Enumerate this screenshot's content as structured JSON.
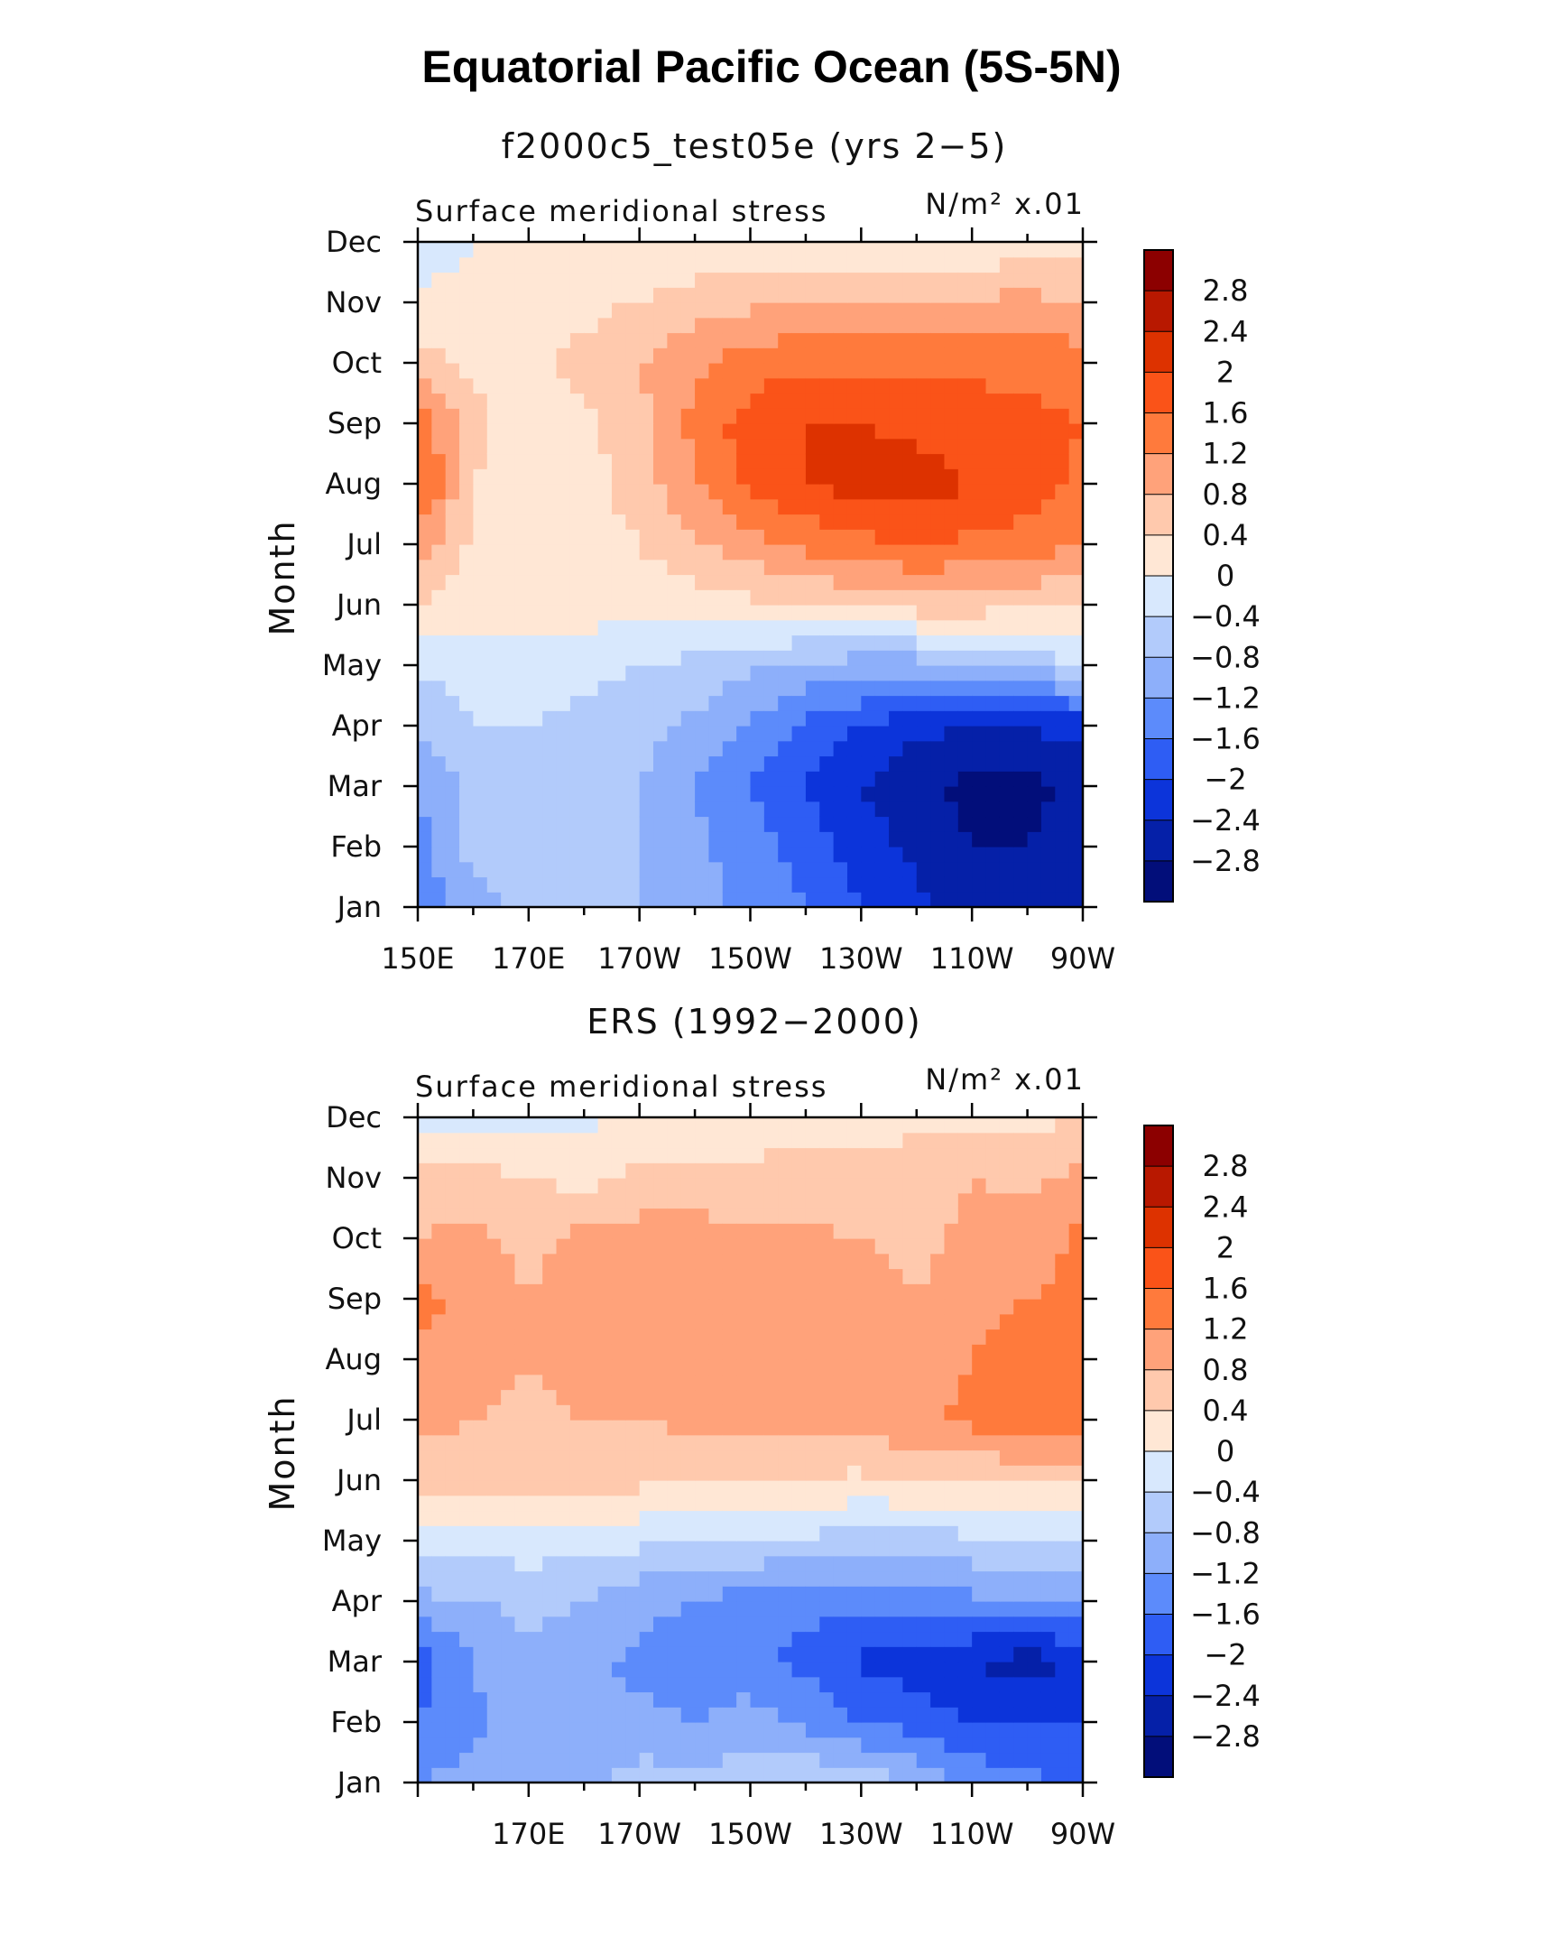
{
  "main_title": "Equatorial Pacific Ocean (5S-5N)",
  "colorbar": {
    "labels": [
      "2.8",
      "2.4",
      "2",
      "1.6",
      "1.2",
      "0.8",
      "0.4",
      "0",
      "−0.4",
      "−0.8",
      "−1.2",
      "−1.6",
      "−2",
      "−2.4",
      "−2.8"
    ],
    "colors": [
      "#8c0000",
      "#b81800",
      "#dd3200",
      "#fa5318",
      "#ff7a3c",
      "#ffa27a",
      "#ffc9ad",
      "#ffe7d5",
      "#d8e8fd",
      "#b2cbfb",
      "#8daffa",
      "#5c8bfb",
      "#2e5df4",
      "#0c34da",
      "#0520a8",
      "#020e7a"
    ]
  },
  "chart_data": [
    {
      "type": "heatmap",
      "title": "f2000c5_test05e (yrs 2−5)",
      "left_label": "Surface meridional stress",
      "right_label": "N/m² x.01",
      "ylabel": "Month",
      "x_ticks": [
        "150E",
        "170E",
        "170W",
        "150W",
        "130W",
        "110W",
        "90W"
      ],
      "y_ticks": [
        "Jan",
        "Feb",
        "Mar",
        "Apr",
        "May",
        "Jun",
        "Jul",
        "Aug",
        "Sep",
        "Oct",
        "Nov",
        "Dec"
      ],
      "x_values_deg_east": [
        150,
        160,
        170,
        180,
        190,
        200,
        210,
        220,
        230,
        240,
        250,
        260,
        270
      ],
      "values_by_month": [
        [
          -1.5,
          -1.0,
          -0.7,
          -0.7,
          -0.8,
          -1.1,
          -1.3,
          -1.6,
          -2.0,
          -2.3,
          -2.5,
          -2.6,
          -2.4
        ],
        [
          -1.4,
          -0.6,
          -0.4,
          -0.6,
          -0.8,
          -1.1,
          -1.4,
          -1.8,
          -2.2,
          -2.5,
          -2.8,
          -2.8,
          -2.5
        ],
        [
          -1.2,
          -0.7,
          -0.6,
          -0.6,
          -0.8,
          -1.2,
          -1.6,
          -2.0,
          -2.4,
          -2.7,
          -2.9,
          -2.9,
          -2.7
        ],
        [
          -0.8,
          -0.4,
          -0.4,
          -0.5,
          -0.6,
          -0.9,
          -1.3,
          -1.7,
          -2.0,
          -2.3,
          -2.4,
          -2.4,
          -2.2
        ],
        [
          -0.3,
          -0.2,
          -0.2,
          -0.3,
          -0.4,
          -0.5,
          -0.7,
          -0.9,
          -1.0,
          -1.0,
          -0.9,
          -0.7,
          -0.4
        ],
        [
          0.4,
          0.2,
          0.2,
          0.2,
          0.2,
          0.2,
          0.3,
          0.4,
          0.5,
          0.6,
          0.6,
          0.5,
          0.4
        ],
        [
          1.0,
          0.3,
          0.2,
          0.2,
          0.4,
          0.7,
          1.0,
          1.3,
          1.5,
          1.6,
          1.5,
          1.4,
          1.2
        ],
        [
          1.8,
          0.4,
          0.2,
          0.2,
          0.6,
          1.2,
          1.7,
          2.0,
          2.2,
          2.2,
          2.0,
          1.8,
          1.5
        ],
        [
          1.5,
          0.5,
          0.2,
          0.3,
          0.7,
          1.3,
          1.8,
          2.0,
          2.0,
          1.9,
          1.8,
          1.7,
          1.6
        ],
        [
          0.6,
          0.3,
          0.3,
          0.5,
          0.8,
          1.1,
          1.4,
          1.5,
          1.5,
          1.5,
          1.5,
          1.5,
          1.4
        ],
        [
          0.1,
          0.1,
          0.2,
          0.3,
          0.4,
          0.6,
          0.7,
          0.8,
          0.9,
          0.9,
          0.9,
          0.9,
          0.8
        ],
        [
          -0.2,
          0.0,
          0.1,
          0.1,
          0.1,
          0.1,
          0.1,
          0.1,
          0.0,
          -0.1,
          0.0,
          0.2,
          0.2
        ]
      ],
      "xlim": [
        150,
        270
      ],
      "grid": false
    },
    {
      "type": "heatmap",
      "title": "ERS (1992−2000)",
      "left_label": "Surface meridional stress",
      "right_label": "N/m² x.01",
      "ylabel": "Month",
      "x_ticks": [
        "170E",
        "170W",
        "150W",
        "130W",
        "110W",
        "90W"
      ],
      "y_ticks": [
        "Jan",
        "Feb",
        "Mar",
        "Apr",
        "May",
        "Jun",
        "Jul",
        "Aug",
        "Sep",
        "Oct",
        "Nov",
        "Dec"
      ],
      "x_values_deg_east": [
        150,
        160,
        170,
        180,
        190,
        200,
        210,
        220,
        230,
        240,
        250,
        260,
        270
      ],
      "values_by_month": [
        [
          -1.2,
          -1.0,
          -0.8,
          -0.9,
          -0.6,
          -0.7,
          -0.5,
          -0.4,
          -0.6,
          -0.8,
          -1.3,
          -1.5,
          -1.8
        ],
        [
          -1.6,
          -1.3,
          -1.0,
          -1.2,
          -1.1,
          -1.2,
          -1.0,
          -1.3,
          -1.6,
          -1.8,
          -2.0,
          -2.0,
          -2.0
        ],
        [
          -1.8,
          -1.2,
          -0.9,
          -1.1,
          -1.3,
          -1.4,
          -1.5,
          -1.7,
          -2.1,
          -2.2,
          -2.4,
          -2.6,
          -2.3
        ],
        [
          -0.9,
          -0.8,
          -0.7,
          -0.8,
          -1.1,
          -1.2,
          -1.4,
          -1.5,
          -1.5,
          -1.4,
          -1.3,
          -1.3,
          -1.2
        ],
        [
          -0.3,
          -0.2,
          -0.2,
          -0.3,
          -0.3,
          -0.4,
          -0.4,
          -0.5,
          -0.6,
          -0.6,
          -0.5,
          -0.5,
          -0.4
        ],
        [
          0.6,
          0.5,
          0.6,
          0.5,
          0.5,
          0.4,
          0.4,
          0.4,
          0.3,
          0.4,
          0.4,
          0.5,
          0.5
        ],
        [
          0.9,
          0.8,
          0.7,
          0.8,
          0.8,
          0.9,
          1.0,
          1.0,
          1.0,
          1.1,
          1.3,
          1.5,
          1.4
        ],
        [
          1.1,
          0.9,
          0.8,
          0.9,
          1.1,
          1.2,
          1.1,
          1.1,
          1.1,
          1.0,
          1.2,
          1.4,
          1.4
        ],
        [
          1.4,
          1.0,
          0.8,
          1.0,
          1.1,
          1.1,
          1.0,
          1.1,
          1.0,
          0.8,
          1.0,
          1.2,
          1.3
        ],
        [
          0.8,
          0.9,
          0.7,
          0.9,
          1.0,
          1.0,
          0.9,
          0.9,
          0.8,
          0.7,
          0.9,
          1.0,
          1.3
        ],
        [
          0.5,
          0.6,
          0.4,
          0.3,
          0.5,
          0.5,
          0.5,
          0.5,
          0.5,
          0.6,
          0.8,
          0.7,
          0.9
        ],
        [
          -0.2,
          -0.2,
          -0.1,
          -0.1,
          0.1,
          0.2,
          0.2,
          0.3,
          0.3,
          0.3,
          0.3,
          0.3,
          0.4
        ]
      ],
      "xlim": [
        150,
        270
      ],
      "grid": false
    }
  ]
}
